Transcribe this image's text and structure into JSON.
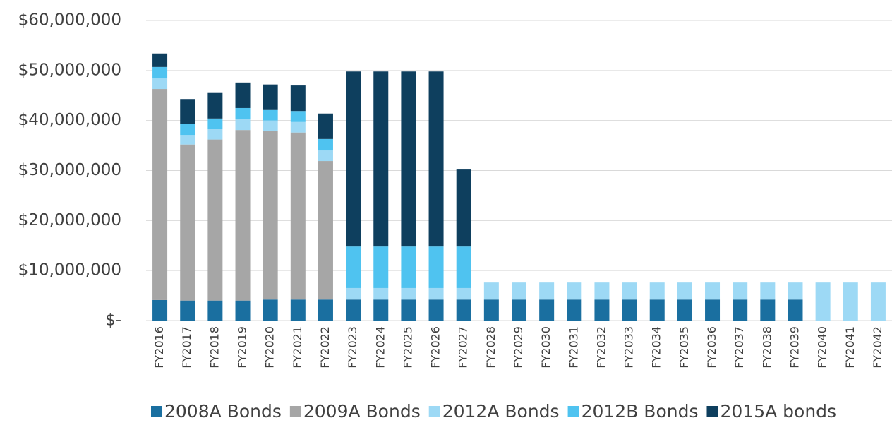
{
  "chart_data": {
    "type": "stacked-bar",
    "categories": [
      "FY2016",
      "FY2017",
      "FY2018",
      "FY2019",
      "FY2020",
      "FY2021",
      "FY2022",
      "FY2023",
      "FY2024",
      "FY2025",
      "FY2026",
      "FY2027",
      "FY2028",
      "FY2029",
      "FY2030",
      "FY2031",
      "FY2032",
      "FY2033",
      "FY2034",
      "FY2035",
      "FY2036",
      "FY2037",
      "FY2038",
      "FY2039",
      "FY2040",
      "FY2041",
      "FY2042"
    ],
    "series": [
      {
        "name": "2008A Bonds",
        "color": "#1a6fa0",
        "values": [
          4100000,
          4000000,
          4000000,
          4000000,
          4200000,
          4200000,
          4200000,
          4200000,
          4200000,
          4200000,
          4200000,
          4200000,
          4200000,
          4200000,
          4200000,
          4200000,
          4200000,
          4200000,
          4200000,
          4200000,
          4200000,
          4200000,
          4200000,
          4200000,
          0,
          0,
          0
        ]
      },
      {
        "name": "2009A Bonds",
        "color": "#a6a6a6",
        "values": [
          42200000,
          31200000,
          32200000,
          34100000,
          33700000,
          33400000,
          27700000,
          0,
          0,
          0,
          0,
          0,
          0,
          0,
          0,
          0,
          0,
          0,
          0,
          0,
          0,
          0,
          0,
          0,
          0,
          0,
          0
        ]
      },
      {
        "name": "2012A Bonds",
        "color": "#9dd9f5",
        "values": [
          2100000,
          1900000,
          2100000,
          2200000,
          2100000,
          2100000,
          2100000,
          2300000,
          2300000,
          2300000,
          2300000,
          2300000,
          3400000,
          3400000,
          3400000,
          3400000,
          3400000,
          3400000,
          3400000,
          3400000,
          3400000,
          3400000,
          3400000,
          3400000,
          7600000,
          7600000,
          7600000
        ]
      },
      {
        "name": "2012B Bonds",
        "color": "#4fc3f0",
        "values": [
          2300000,
          2200000,
          2100000,
          2200000,
          2100000,
          2200000,
          2300000,
          8300000,
          8300000,
          8300000,
          8300000,
          8300000,
          0,
          0,
          0,
          0,
          0,
          0,
          0,
          0,
          0,
          0,
          0,
          0,
          0,
          0,
          0
        ]
      },
      {
        "name": "2015A bonds",
        "color": "#0e3f5e",
        "values": [
          2700000,
          5000000,
          5100000,
          5100000,
          5100000,
          5100000,
          5100000,
          35000000,
          35000000,
          35000000,
          35000000,
          15400000,
          0,
          0,
          0,
          0,
          0,
          0,
          0,
          0,
          0,
          0,
          0,
          0,
          0,
          0,
          0
        ]
      }
    ],
    "ylim": [
      0,
      60000000
    ],
    "yticks": [
      {
        "value": 0,
        "label": "$-"
      },
      {
        "value": 10000000,
        "label": "$10,000,000"
      },
      {
        "value": 20000000,
        "label": "$20,000,000"
      },
      {
        "value": 30000000,
        "label": "$30,000,000"
      },
      {
        "value": 40000000,
        "label": "$40,000,000"
      },
      {
        "value": 50000000,
        "label": "$50,000,000"
      },
      {
        "value": 60000000,
        "label": "$60,000,000"
      }
    ],
    "grid": true,
    "legend": "bottom"
  }
}
